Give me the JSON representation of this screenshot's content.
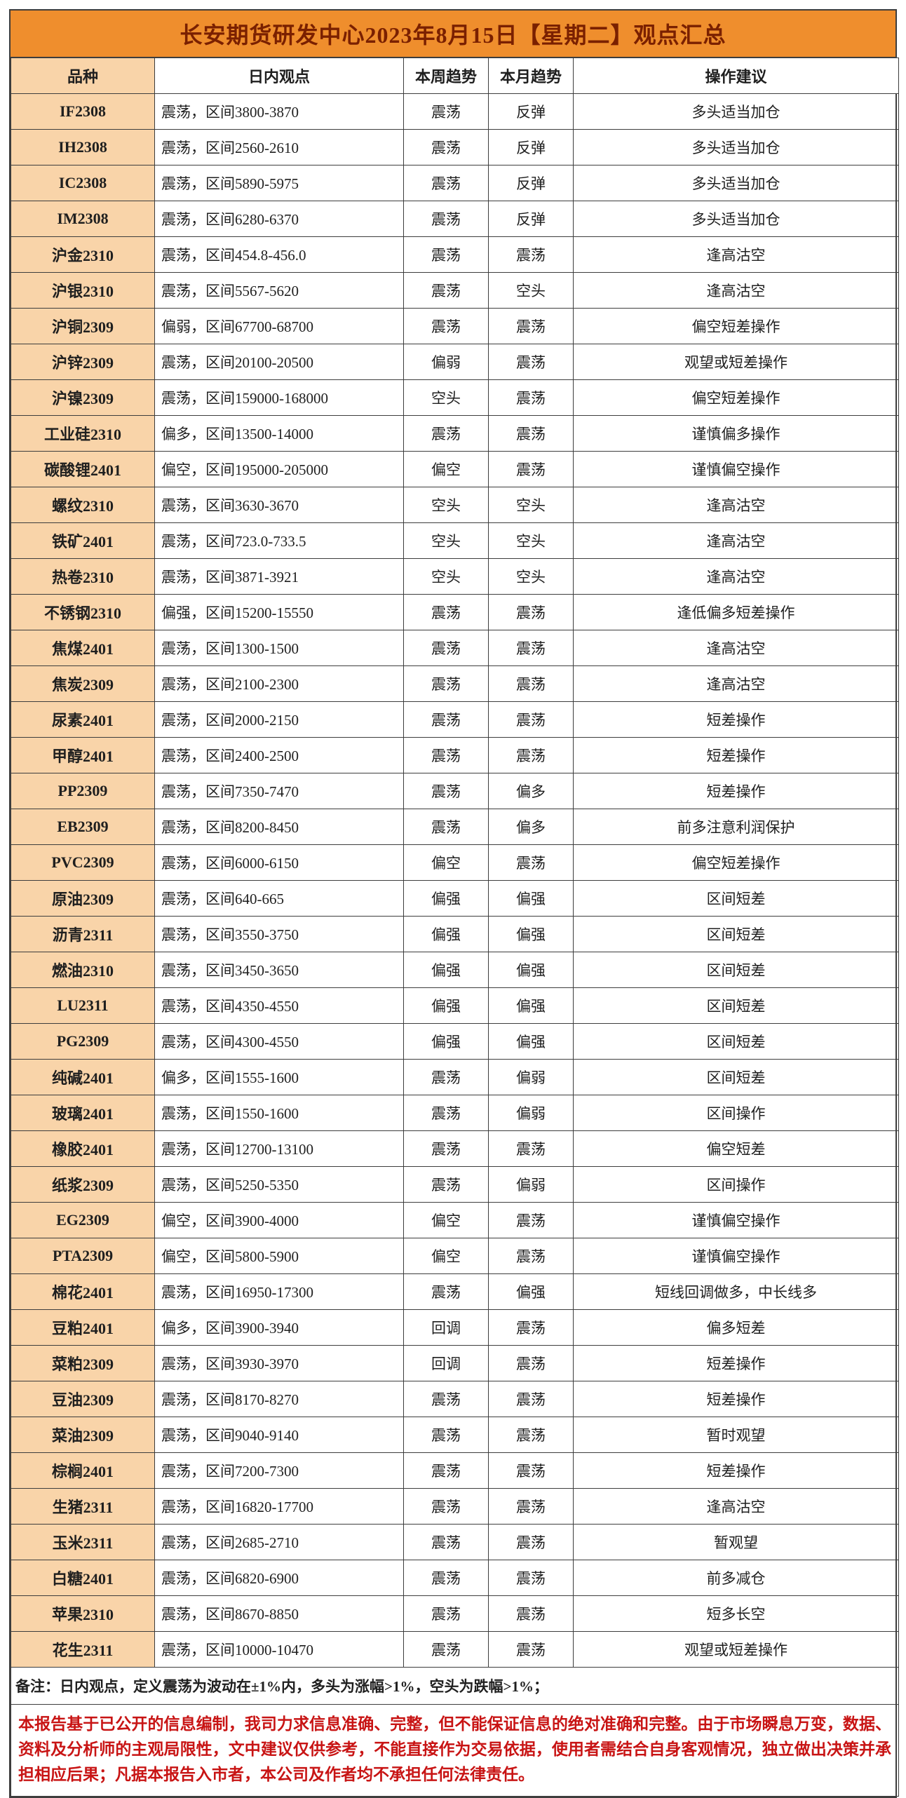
{
  "title": "长安期货研发中心2023年8月15日【星期二】观点汇总",
  "table": {
    "columns": [
      "品种",
      "日内观点",
      "本周趋势",
      "本月趋势",
      "操作建议"
    ],
    "rows": [
      [
        "IF2308",
        "震荡，区间3800-3870",
        "震荡",
        "反弹",
        "多头适当加仓"
      ],
      [
        "IH2308",
        "震荡，区间2560-2610",
        "震荡",
        "反弹",
        "多头适当加仓"
      ],
      [
        "IC2308",
        "震荡，区间5890-5975",
        "震荡",
        "反弹",
        "多头适当加仓"
      ],
      [
        "IM2308",
        "震荡，区间6280-6370",
        "震荡",
        "反弹",
        "多头适当加仓"
      ],
      [
        "沪金2310",
        "震荡，区间454.8-456.0",
        "震荡",
        "震荡",
        "逢高沽空"
      ],
      [
        "沪银2310",
        "震荡，区间5567-5620",
        "震荡",
        "空头",
        "逢高沽空"
      ],
      [
        "沪铜2309",
        "偏弱，区间67700-68700",
        "震荡",
        "震荡",
        "偏空短差操作"
      ],
      [
        "沪锌2309",
        "震荡，区间20100-20500",
        "偏弱",
        "震荡",
        "观望或短差操作"
      ],
      [
        "沪镍2309",
        "震荡，区间159000-168000",
        "空头",
        "震荡",
        "偏空短差操作"
      ],
      [
        "工业硅2310",
        "偏多，区间13500-14000",
        "震荡",
        "震荡",
        "谨慎偏多操作"
      ],
      [
        "碳酸锂2401",
        "偏空，区间195000-205000",
        "偏空",
        "震荡",
        "谨慎偏空操作"
      ],
      [
        "螺纹2310",
        "震荡，区间3630-3670",
        "空头",
        "空头",
        "逢高沽空"
      ],
      [
        "铁矿2401",
        "震荡，区间723.0-733.5",
        "空头",
        "空头",
        "逢高沽空"
      ],
      [
        "热卷2310",
        "震荡，区间3871-3921",
        "空头",
        "空头",
        "逢高沽空"
      ],
      [
        "不锈钢2310",
        "偏强，区间15200-15550",
        "震荡",
        "震荡",
        "逢低偏多短差操作"
      ],
      [
        "焦煤2401",
        "震荡，区间1300-1500",
        "震荡",
        "震荡",
        "逢高沽空"
      ],
      [
        "焦炭2309",
        "震荡，区间2100-2300",
        "震荡",
        "震荡",
        "逢高沽空"
      ],
      [
        "尿素2401",
        "震荡，区间2000-2150",
        "震荡",
        "震荡",
        "短差操作"
      ],
      [
        "甲醇2401",
        "震荡，区间2400-2500",
        "震荡",
        "震荡",
        "短差操作"
      ],
      [
        "PP2309",
        "震荡，区间7350-7470",
        "震荡",
        "偏多",
        "短差操作"
      ],
      [
        "EB2309",
        "震荡，区间8200-8450",
        "震荡",
        "偏多",
        "前多注意利润保护"
      ],
      [
        "PVC2309",
        "震荡，区间6000-6150",
        "偏空",
        "震荡",
        "偏空短差操作"
      ],
      [
        "原油2309",
        "震荡，区间640-665",
        "偏强",
        "偏强",
        "区间短差"
      ],
      [
        "沥青2311",
        "震荡，区间3550-3750",
        "偏强",
        "偏强",
        "区间短差"
      ],
      [
        "燃油2310",
        "震荡，区间3450-3650",
        "偏强",
        "偏强",
        "区间短差"
      ],
      [
        "LU2311",
        "震荡，区间4350-4550",
        "偏强",
        "偏强",
        "区间短差"
      ],
      [
        "PG2309",
        "震荡，区间4300-4550",
        "偏强",
        "偏强",
        "区间短差"
      ],
      [
        "纯碱2401",
        "偏多，区间1555-1600",
        "震荡",
        "偏弱",
        "区间短差"
      ],
      [
        "玻璃2401",
        "震荡，区间1550-1600",
        "震荡",
        "偏弱",
        "区间操作"
      ],
      [
        "橡胶2401",
        "震荡，区间12700-13100",
        "震荡",
        "震荡",
        "偏空短差"
      ],
      [
        "纸浆2309",
        "震荡，区间5250-5350",
        "震荡",
        "偏弱",
        "区间操作"
      ],
      [
        "EG2309",
        "偏空，区间3900-4000",
        "偏空",
        "震荡",
        "谨慎偏空操作"
      ],
      [
        "PTA2309",
        "偏空，区间5800-5900",
        "偏空",
        "震荡",
        "谨慎偏空操作"
      ],
      [
        "棉花2401",
        "震荡，区间16950-17300",
        "震荡",
        "偏强",
        "短线回调做多，中长线多"
      ],
      [
        "豆粕2401",
        "偏多，区间3900-3940",
        "回调",
        "震荡",
        "偏多短差"
      ],
      [
        "菜粕2309",
        "震荡，区间3930-3970",
        "回调",
        "震荡",
        "短差操作"
      ],
      [
        "豆油2309",
        "震荡，区间8170-8270",
        "震荡",
        "震荡",
        "短差操作"
      ],
      [
        "菜油2309",
        "震荡，区间9040-9140",
        "震荡",
        "震荡",
        "暂时观望"
      ],
      [
        "棕榈2401",
        "震荡，区间7200-7300",
        "震荡",
        "震荡",
        "短差操作"
      ],
      [
        "生猪2311",
        "震荡，区间16820-17700",
        "震荡",
        "震荡",
        "逢高沽空"
      ],
      [
        "玉米2311",
        "震荡，区间2685-2710",
        "震荡",
        "震荡",
        "暂观望"
      ],
      [
        "白糖2401",
        "震荡，区间6820-6900",
        "震荡",
        "震荡",
        "前多减仓"
      ],
      [
        "苹果2310",
        "震荡，区间8670-8850",
        "震荡",
        "震荡",
        "短多长空"
      ],
      [
        "花生2311",
        "震荡，区间10000-10470",
        "震荡",
        "震荡",
        "观望或短差操作"
      ]
    ]
  },
  "note": "备注：日内观点，定义震荡为波动在±1%内，多头为涨幅>1%，空头为跌幅>1%；",
  "disclaimer": "本报告基于已公开的信息编制，我司力求信息准确、完整，但不能保证信息的绝对准确和完整。由于市场瞬息万变，数据、资料及分析师的主观局限性，文中建议仅供参考，不能直接作为交易依据，使用者需结合自身客观情况，独立做出决策并承担相应后果；凡据本报告入市者，本公司及作者均不承担任何法律责任。",
  "colors": {
    "title_background": "#ef8e2d",
    "title_text": "#7a2000",
    "variety_column_background": "#f9d4a9",
    "grid_border": "#3d3d3d",
    "disclaimer_text": "#c81414"
  }
}
